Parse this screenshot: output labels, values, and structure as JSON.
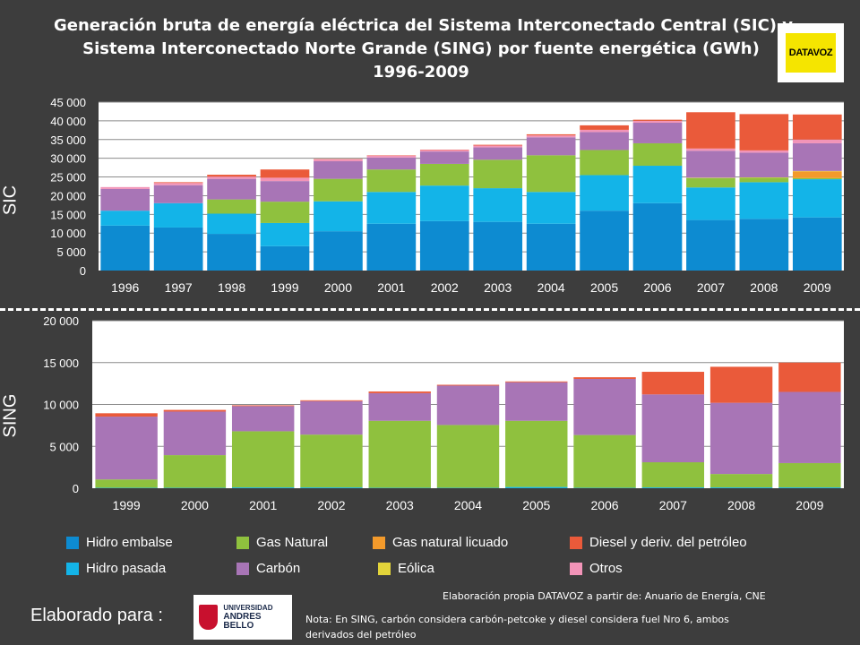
{
  "title": {
    "line1": "Generación bruta de energía eléctrica del Sistema Interconectado Central (SIC) y",
    "line2": "Sistema Interconectado Norte Grande (SING) por fuente energética (GWh)",
    "line3": "1996-2009"
  },
  "logo": {
    "text": "DATAVOZ"
  },
  "side_labels": {
    "sic": "SIC",
    "sing": "SING"
  },
  "colors": {
    "background": "#3d3d3d",
    "plot_background": "#ffffff"
  },
  "legend": [
    {
      "key": "hidro_embalse",
      "label": "Hidro embalse",
      "color": "#0d8bd1"
    },
    {
      "key": "gas_natural",
      "label": "Gas Natural",
      "color": "#8fc13e"
    },
    {
      "key": "gnl",
      "label": "Gas natural licuado",
      "color": "#f39a2b"
    },
    {
      "key": "diesel",
      "label": "Diesel y deriv. del petróleo",
      "color": "#ea5a3a"
    },
    {
      "key": "hidro_pasada",
      "label": "Hidro pasada",
      "color": "#13b4e8"
    },
    {
      "key": "carbon",
      "label": "Carbón",
      "color": "#a875b6"
    },
    {
      "key": "eolica",
      "label": "Eólica",
      "color": "#e3d43a"
    },
    {
      "key": "otros",
      "label": "Otros",
      "color": "#f294b8"
    }
  ],
  "chart_data": [
    {
      "id": "sic",
      "type": "bar",
      "stacked": true,
      "title": "",
      "xlabel": "",
      "ylabel": "",
      "categories": [
        "1996",
        "1997",
        "1998",
        "1999",
        "2000",
        "2001",
        "2002",
        "2003",
        "2004",
        "2005",
        "2006",
        "2007",
        "2008",
        "2009"
      ],
      "ylim": [
        0,
        45000
      ],
      "yticks": [
        0,
        5000,
        10000,
        15000,
        20000,
        25000,
        30000,
        35000,
        40000,
        45000
      ],
      "ytick_labels": [
        "0",
        "5 000",
        "10 000",
        "15 000",
        "20 000",
        "25 000",
        "30 000",
        "35 000",
        "40 000",
        "45 000"
      ],
      "grid": true,
      "series": [
        {
          "name": "Hidro embalse",
          "values": [
            12000,
            11500,
            9800,
            6500,
            10500,
            12500,
            13200,
            13000,
            12500,
            16000,
            18000,
            13500,
            13800,
            14200
          ]
        },
        {
          "name": "Hidro pasada",
          "values": [
            4000,
            6500,
            5400,
            6200,
            8000,
            8500,
            9500,
            9000,
            8500,
            9500,
            10000,
            8700,
            9800,
            10200
          ]
        },
        {
          "name": "Gas Natural",
          "values": [
            0,
            0,
            3800,
            5700,
            6000,
            6000,
            5800,
            7600,
            9800,
            6700,
            6000,
            2500,
            1200,
            300
          ]
        },
        {
          "name": "Gas natural licuado",
          "values": [
            0,
            0,
            0,
            0,
            0,
            0,
            0,
            0,
            0,
            0,
            0,
            0,
            0,
            1800
          ]
        },
        {
          "name": "Eólica",
          "values": [
            0,
            0,
            0,
            0,
            0,
            0,
            0,
            0,
            0,
            0,
            0,
            100,
            100,
            100
          ]
        },
        {
          "name": "Carbón",
          "values": [
            5800,
            4800,
            5500,
            5500,
            4700,
            3200,
            3300,
            3300,
            4800,
            4800,
            5500,
            7200,
            6600,
            7400
          ]
        },
        {
          "name": "Otros",
          "values": [
            500,
            600,
            600,
            900,
            500,
            500,
            400,
            500,
            500,
            600,
            500,
            600,
            600,
            1000
          ]
        },
        {
          "name": "Diesel y deriv. del petróleo",
          "values": [
            0,
            200,
            500,
            2200,
            100,
            100,
            100,
            200,
            300,
            1200,
            300,
            9700,
            9700,
            6700
          ]
        }
      ]
    },
    {
      "id": "sing",
      "type": "bar",
      "stacked": true,
      "title": "",
      "xlabel": "",
      "ylabel": "",
      "categories": [
        "1999",
        "2000",
        "2001",
        "2002",
        "2003",
        "2004",
        "2005",
        "2006",
        "2007",
        "2008",
        "2009"
      ],
      "ylim": [
        0,
        20000
      ],
      "yticks": [
        0,
        5000,
        10000,
        15000,
        20000
      ],
      "ytick_labels": [
        "0",
        "5 000",
        "10 000",
        "15 000",
        "20 000"
      ],
      "grid": true,
      "series": [
        {
          "name": "Hidro embalse",
          "values": [
            0,
            0,
            0,
            0,
            0,
            0,
            0,
            0,
            0,
            0,
            0
          ]
        },
        {
          "name": "Hidro pasada",
          "values": [
            50,
            50,
            100,
            100,
            50,
            50,
            150,
            50,
            100,
            100,
            100
          ]
        },
        {
          "name": "Gas Natural",
          "values": [
            1000,
            3900,
            6700,
            6300,
            8000,
            7500,
            7900,
            6300,
            3000,
            1600,
            2900
          ]
        },
        {
          "name": "Gas natural licuado",
          "values": [
            0,
            0,
            0,
            0,
            0,
            0,
            0,
            0,
            0,
            0,
            0
          ]
        },
        {
          "name": "Eólica",
          "values": [
            0,
            0,
            0,
            0,
            0,
            0,
            0,
            0,
            0,
            0,
            0
          ]
        },
        {
          "name": "Carbón",
          "values": [
            7500,
            5200,
            3000,
            4000,
            3300,
            4700,
            4600,
            6700,
            8100,
            8500,
            8500
          ]
        },
        {
          "name": "Otros",
          "values": [
            0,
            0,
            0,
            0,
            0,
            0,
            0,
            0,
            0,
            0,
            0
          ]
        },
        {
          "name": "Diesel y deriv. del petróleo",
          "values": [
            400,
            200,
            100,
            100,
            200,
            100,
            100,
            200,
            2700,
            4300,
            3500
          ]
        }
      ]
    }
  ],
  "footer": {
    "source": "Elaboración propia DATAVOZ a partir de: Anuario  de Energía, CNE",
    "made_for": "Elaborado para :",
    "university_line1": "UNIVERSIDAD",
    "university_line2": "ANDRES BELLO",
    "note_line1": "Nota: En SING, carbón considera carbón-petcoke y diesel considera fuel Nro 6, ambos",
    "note_line2": "derivados del petróleo"
  }
}
